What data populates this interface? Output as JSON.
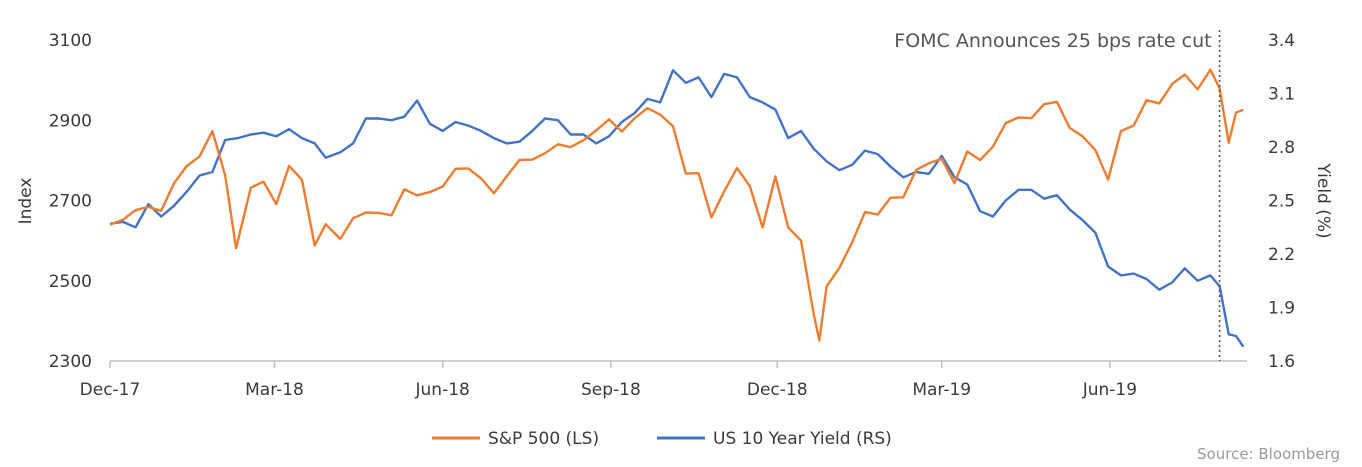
{
  "chart_data": {
    "type": "line",
    "annotation": "FOMC Announces 25 bps rate cut",
    "annotation_x": "2019-07-31",
    "ylabel": "Index",
    "y2label": "Yield (%)",
    "ylim": [
      2300,
      3100
    ],
    "y2lim": [
      1.6,
      3.4
    ],
    "yticks": [
      2300,
      2500,
      2700,
      2900,
      3100
    ],
    "y2ticks": [
      "1.6",
      "1.9",
      "2.2",
      "2.5",
      "2.8",
      "3.1",
      "3.4"
    ],
    "xlim": [
      "2017-12-01",
      "2019-08-15"
    ],
    "xticks": [
      {
        "date": "2017-12-01",
        "label": "Dec-17"
      },
      {
        "date": "2018-03-01",
        "label": "Mar-18"
      },
      {
        "date": "2018-06-01",
        "label": "Jun-18"
      },
      {
        "date": "2018-09-01",
        "label": "Sep-18"
      },
      {
        "date": "2018-12-01",
        "label": "Dec-18"
      },
      {
        "date": "2019-03-01",
        "label": "Mar-19"
      },
      {
        "date": "2019-06-01",
        "label": "Jun-19"
      }
    ],
    "series": [
      {
        "name": "S&P 500 (LS)",
        "axis": "left",
        "color": "#ED7D31",
        "points": [
          [
            "2017-12-01",
            2640
          ],
          [
            "2017-12-08",
            2652
          ],
          [
            "2017-12-15",
            2676
          ],
          [
            "2017-12-22",
            2684
          ],
          [
            "2017-12-29",
            2674
          ],
          [
            "2018-01-05",
            2743
          ],
          [
            "2018-01-12",
            2786
          ],
          [
            "2018-01-19",
            2810
          ],
          [
            "2018-01-26",
            2873
          ],
          [
            "2018-02-02",
            2762
          ],
          [
            "2018-02-08",
            2581
          ],
          [
            "2018-02-16",
            2732
          ],
          [
            "2018-02-23",
            2747
          ],
          [
            "2018-03-02",
            2691
          ],
          [
            "2018-03-09",
            2786
          ],
          [
            "2018-03-16",
            2752
          ],
          [
            "2018-03-23",
            2588
          ],
          [
            "2018-03-29",
            2641
          ],
          [
            "2018-04-06",
            2604
          ],
          [
            "2018-04-13",
            2656
          ],
          [
            "2018-04-20",
            2670
          ],
          [
            "2018-04-27",
            2669
          ],
          [
            "2018-05-04",
            2663
          ],
          [
            "2018-05-11",
            2728
          ],
          [
            "2018-05-18",
            2713
          ],
          [
            "2018-05-25",
            2721
          ],
          [
            "2018-06-01",
            2735
          ],
          [
            "2018-06-08",
            2779
          ],
          [
            "2018-06-15",
            2780
          ],
          [
            "2018-06-22",
            2755
          ],
          [
            "2018-06-29",
            2718
          ],
          [
            "2018-07-06",
            2760
          ],
          [
            "2018-07-13",
            2801
          ],
          [
            "2018-07-20",
            2802
          ],
          [
            "2018-07-27",
            2818
          ],
          [
            "2018-08-03",
            2840
          ],
          [
            "2018-08-10",
            2833
          ],
          [
            "2018-08-17",
            2850
          ],
          [
            "2018-08-24",
            2875
          ],
          [
            "2018-08-31",
            2902
          ],
          [
            "2018-09-07",
            2872
          ],
          [
            "2018-09-14",
            2905
          ],
          [
            "2018-09-21",
            2930
          ],
          [
            "2018-09-28",
            2914
          ],
          [
            "2018-10-05",
            2885
          ],
          [
            "2018-10-12",
            2767
          ],
          [
            "2018-10-19",
            2768
          ],
          [
            "2018-10-26",
            2658
          ],
          [
            "2018-11-02",
            2723
          ],
          [
            "2018-11-09",
            2781
          ],
          [
            "2018-11-16",
            2736
          ],
          [
            "2018-11-23",
            2633
          ],
          [
            "2018-11-30",
            2760
          ],
          [
            "2018-12-07",
            2633
          ],
          [
            "2018-12-14",
            2600
          ],
          [
            "2018-12-21",
            2416
          ],
          [
            "2018-12-24",
            2351
          ],
          [
            "2018-12-28",
            2486
          ],
          [
            "2019-01-04",
            2532
          ],
          [
            "2019-01-11",
            2596
          ],
          [
            "2019-01-18",
            2671
          ],
          [
            "2019-01-25",
            2665
          ],
          [
            "2019-02-01",
            2707
          ],
          [
            "2019-02-08",
            2708
          ],
          [
            "2019-02-15",
            2776
          ],
          [
            "2019-02-22",
            2793
          ],
          [
            "2019-03-01",
            2804
          ],
          [
            "2019-03-08",
            2743
          ],
          [
            "2019-03-15",
            2822
          ],
          [
            "2019-03-22",
            2801
          ],
          [
            "2019-03-29",
            2834
          ],
          [
            "2019-04-05",
            2893
          ],
          [
            "2019-04-12",
            2907
          ],
          [
            "2019-04-19",
            2905
          ],
          [
            "2019-04-26",
            2940
          ],
          [
            "2019-05-03",
            2946
          ],
          [
            "2019-05-10",
            2881
          ],
          [
            "2019-05-17",
            2860
          ],
          [
            "2019-05-24",
            2826
          ],
          [
            "2019-05-31",
            2752
          ],
          [
            "2019-06-07",
            2873
          ],
          [
            "2019-06-14",
            2887
          ],
          [
            "2019-06-21",
            2950
          ],
          [
            "2019-06-28",
            2942
          ],
          [
            "2019-07-05",
            2990
          ],
          [
            "2019-07-12",
            3014
          ],
          [
            "2019-07-19",
            2977
          ],
          [
            "2019-07-26",
            3026
          ],
          [
            "2019-07-31",
            2980
          ],
          [
            "2019-08-05",
            2844
          ],
          [
            "2019-08-09",
            2919
          ],
          [
            "2019-08-13",
            2926
          ]
        ]
      },
      {
        "name": "US 10 Year Yield (RS)",
        "axis": "right",
        "color": "#4472C4",
        "points": [
          [
            "2017-12-01",
            2.37
          ],
          [
            "2017-12-08",
            2.38
          ],
          [
            "2017-12-15",
            2.35
          ],
          [
            "2017-12-22",
            2.48
          ],
          [
            "2017-12-29",
            2.41
          ],
          [
            "2018-01-05",
            2.47
          ],
          [
            "2018-01-12",
            2.55
          ],
          [
            "2018-01-19",
            2.64
          ],
          [
            "2018-01-26",
            2.66
          ],
          [
            "2018-02-02",
            2.84
          ],
          [
            "2018-02-09",
            2.85
          ],
          [
            "2018-02-16",
            2.87
          ],
          [
            "2018-02-23",
            2.88
          ],
          [
            "2018-03-02",
            2.86
          ],
          [
            "2018-03-09",
            2.9
          ],
          [
            "2018-03-16",
            2.85
          ],
          [
            "2018-03-23",
            2.82
          ],
          [
            "2018-03-29",
            2.74
          ],
          [
            "2018-04-06",
            2.77
          ],
          [
            "2018-04-13",
            2.82
          ],
          [
            "2018-04-20",
            2.96
          ],
          [
            "2018-04-27",
            2.96
          ],
          [
            "2018-05-04",
            2.95
          ],
          [
            "2018-05-11",
            2.97
          ],
          [
            "2018-05-18",
            3.06
          ],
          [
            "2018-05-25",
            2.93
          ],
          [
            "2018-06-01",
            2.89
          ],
          [
            "2018-06-08",
            2.94
          ],
          [
            "2018-06-15",
            2.92
          ],
          [
            "2018-06-22",
            2.89
          ],
          [
            "2018-06-29",
            2.85
          ],
          [
            "2018-07-06",
            2.82
          ],
          [
            "2018-07-13",
            2.83
          ],
          [
            "2018-07-20",
            2.89
          ],
          [
            "2018-07-27",
            2.96
          ],
          [
            "2018-08-03",
            2.95
          ],
          [
            "2018-08-10",
            2.87
          ],
          [
            "2018-08-17",
            2.87
          ],
          [
            "2018-08-24",
            2.82
          ],
          [
            "2018-08-31",
            2.86
          ],
          [
            "2018-09-07",
            2.94
          ],
          [
            "2018-09-14",
            2.99
          ],
          [
            "2018-09-21",
            3.07
          ],
          [
            "2018-09-28",
            3.05
          ],
          [
            "2018-10-05",
            3.23
          ],
          [
            "2018-10-12",
            3.16
          ],
          [
            "2018-10-19",
            3.19
          ],
          [
            "2018-10-26",
            3.08
          ],
          [
            "2018-11-02",
            3.21
          ],
          [
            "2018-11-09",
            3.19
          ],
          [
            "2018-11-16",
            3.08
          ],
          [
            "2018-11-23",
            3.05
          ],
          [
            "2018-11-30",
            3.01
          ],
          [
            "2018-12-07",
            2.85
          ],
          [
            "2018-12-14",
            2.89
          ],
          [
            "2018-12-21",
            2.79
          ],
          [
            "2018-12-28",
            2.72
          ],
          [
            "2019-01-04",
            2.67
          ],
          [
            "2019-01-11",
            2.7
          ],
          [
            "2019-01-18",
            2.78
          ],
          [
            "2019-01-25",
            2.76
          ],
          [
            "2019-02-01",
            2.69
          ],
          [
            "2019-02-08",
            2.63
          ],
          [
            "2019-02-15",
            2.66
          ],
          [
            "2019-02-22",
            2.65
          ],
          [
            "2019-03-01",
            2.75
          ],
          [
            "2019-03-08",
            2.63
          ],
          [
            "2019-03-15",
            2.59
          ],
          [
            "2019-03-22",
            2.44
          ],
          [
            "2019-03-29",
            2.41
          ],
          [
            "2019-04-05",
            2.5
          ],
          [
            "2019-04-12",
            2.56
          ],
          [
            "2019-04-19",
            2.56
          ],
          [
            "2019-04-26",
            2.51
          ],
          [
            "2019-05-03",
            2.53
          ],
          [
            "2019-05-10",
            2.45
          ],
          [
            "2019-05-17",
            2.39
          ],
          [
            "2019-05-24",
            2.32
          ],
          [
            "2019-05-31",
            2.13
          ],
          [
            "2019-06-07",
            2.08
          ],
          [
            "2019-06-14",
            2.09
          ],
          [
            "2019-06-21",
            2.06
          ],
          [
            "2019-06-28",
            2.0
          ],
          [
            "2019-07-05",
            2.04
          ],
          [
            "2019-07-12",
            2.12
          ],
          [
            "2019-07-19",
            2.05
          ],
          [
            "2019-07-26",
            2.08
          ],
          [
            "2019-07-31",
            2.02
          ],
          [
            "2019-08-05",
            1.75
          ],
          [
            "2019-08-09",
            1.74
          ],
          [
            "2019-08-13",
            1.68
          ]
        ]
      }
    ],
    "legend_position": "bottom-center",
    "grid": false
  },
  "source": "Source: Bloomberg"
}
